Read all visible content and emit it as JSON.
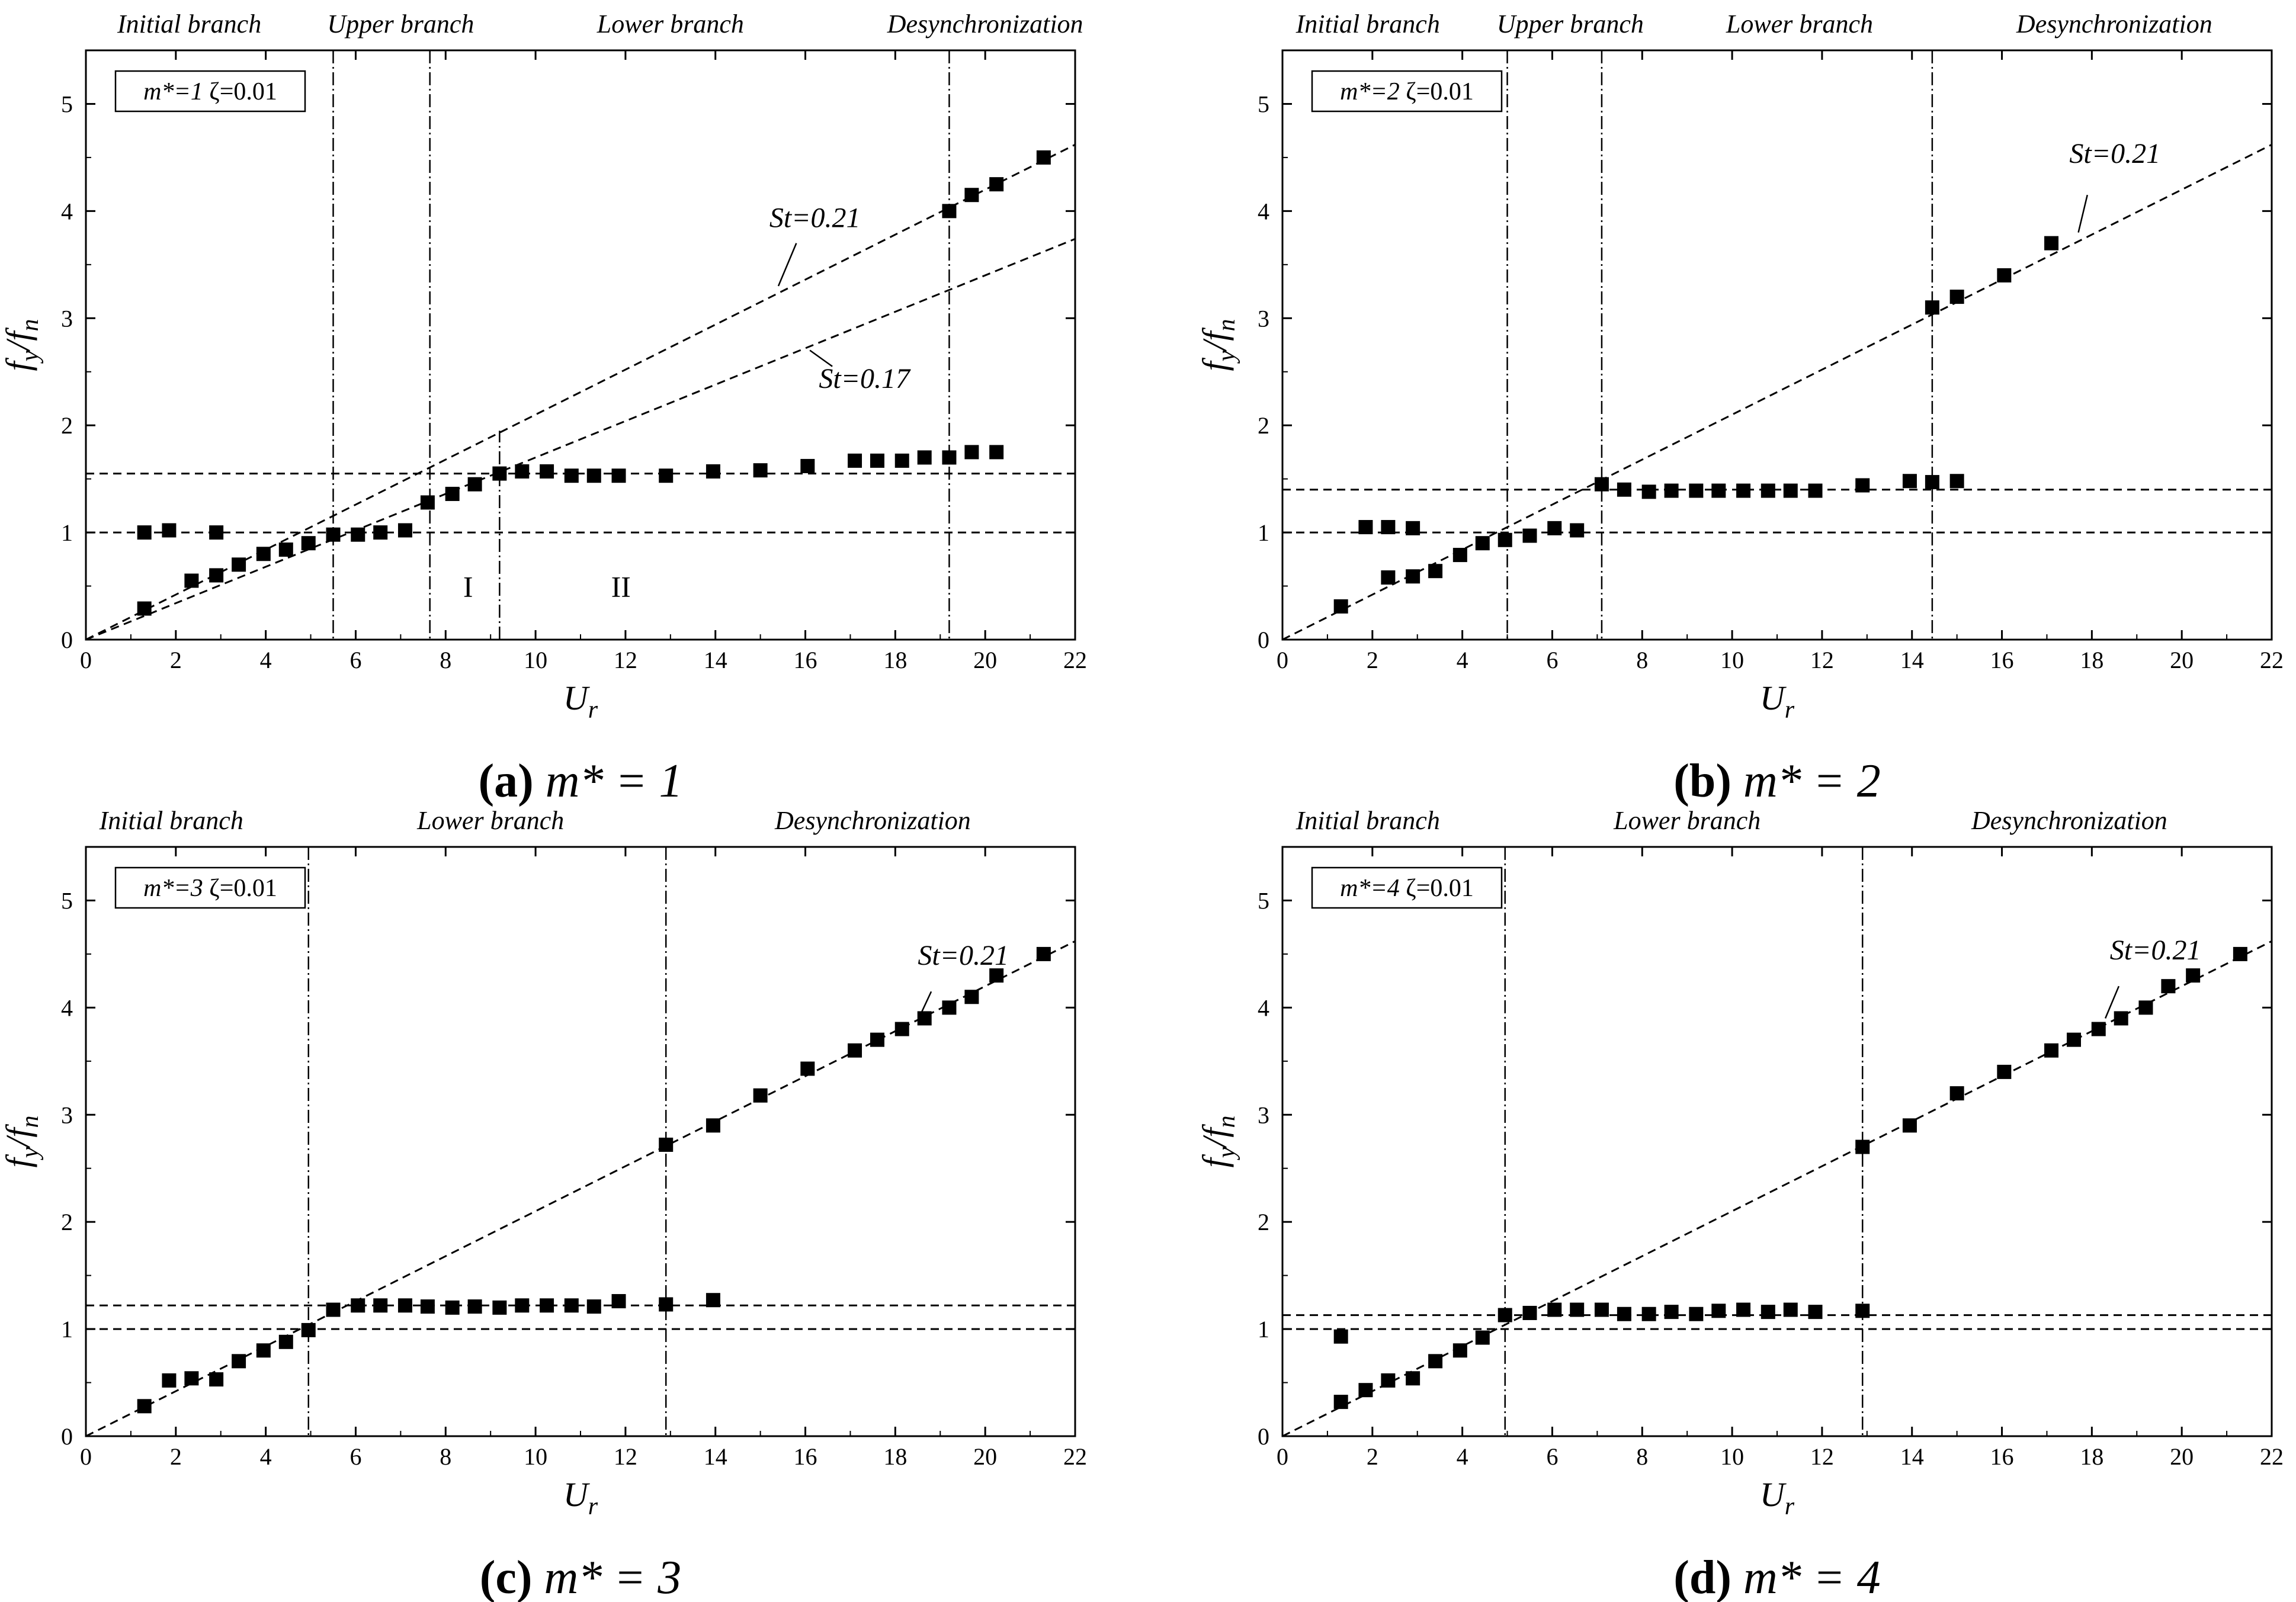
{
  "figure": {
    "x_axis_label": "U",
    "x_axis_sub": "r",
    "y_axis_label": "f",
    "y_axis_sub1": "y",
    "y_axis_sub2": "n",
    "y_axis_slash": "/"
  },
  "chart_data": [
    {
      "type": "scatter",
      "caption_letter": "(a)",
      "caption_text": "m* = 1",
      "param_label_m": "m*=1",
      "param_label_z": "ζ=0.01",
      "xlim": [
        0,
        22
      ],
      "ylim": [
        0,
        5.5
      ],
      "xticks": [
        0,
        2,
        4,
        6,
        8,
        10,
        12,
        14,
        16,
        18,
        20,
        22
      ],
      "yticks": [
        0,
        1,
        2,
        3,
        4,
        5
      ],
      "branches": [
        {
          "label": "Initial branch",
          "center": 2.3
        },
        {
          "label": "Upper branch",
          "center": 7.0
        },
        {
          "label": "Lower branch",
          "center": 13.0
        },
        {
          "label": "Desynchronization",
          "center": 20.0
        }
      ],
      "vlines": [
        5.5,
        7.65,
        19.2
      ],
      "short_vline": {
        "x": 9.2,
        "y0": 0,
        "y1": 1.95
      },
      "hlines": [
        1.0,
        1.55
      ],
      "st_lines": [
        {
          "label": "St=0.21",
          "slope": 0.21,
          "label_x": 15.2,
          "label_y": 3.85,
          "leader_from": [
            15.8,
            3.7
          ],
          "leader_to": [
            15.4,
            3.3
          ]
        },
        {
          "label": "St=0.17",
          "slope": 0.17,
          "label_x": 16.3,
          "label_y": 2.35,
          "leader_from": [
            16.6,
            2.55
          ],
          "leader_to": [
            16.1,
            2.7
          ]
        }
      ],
      "roman": [
        {
          "label": "I",
          "x": 8.5,
          "y": 0.5
        },
        {
          "label": "II",
          "x": 11.9,
          "y": 0.5
        }
      ],
      "points": [
        [
          1.3,
          1.0
        ],
        [
          1.85,
          1.02
        ],
        [
          2.9,
          1.0
        ],
        [
          1.3,
          0.29
        ],
        [
          2.35,
          0.55
        ],
        [
          2.9,
          0.6
        ],
        [
          3.4,
          0.7
        ],
        [
          3.95,
          0.8
        ],
        [
          4.45,
          0.84
        ],
        [
          4.95,
          0.9
        ],
        [
          5.5,
          0.98
        ],
        [
          6.05,
          0.98
        ],
        [
          6.55,
          1.0
        ],
        [
          7.1,
          1.02
        ],
        [
          7.6,
          1.28
        ],
        [
          8.15,
          1.36
        ],
        [
          8.65,
          1.45
        ],
        [
          9.2,
          1.55
        ],
        [
          9.7,
          1.57
        ],
        [
          10.25,
          1.57
        ],
        [
          10.8,
          1.53
        ],
        [
          11.3,
          1.53
        ],
        [
          11.85,
          1.53
        ],
        [
          12.9,
          1.53
        ],
        [
          13.95,
          1.57
        ],
        [
          15.0,
          1.58
        ],
        [
          16.05,
          1.62
        ],
        [
          17.1,
          1.67
        ],
        [
          17.6,
          1.67
        ],
        [
          18.15,
          1.67
        ],
        [
          18.65,
          1.7
        ],
        [
          19.2,
          1.7
        ],
        [
          19.7,
          1.75
        ],
        [
          20.25,
          1.75
        ],
        [
          19.2,
          4.0
        ],
        [
          19.7,
          4.15
        ],
        [
          20.25,
          4.25
        ],
        [
          21.3,
          4.5
        ]
      ]
    },
    {
      "type": "scatter",
      "caption_letter": "(b)",
      "caption_text": "m* = 2",
      "param_label_m": "m*=2",
      "param_label_z": "ζ=0.01",
      "xlim": [
        0,
        22
      ],
      "ylim": [
        0,
        5.5
      ],
      "xticks": [
        0,
        2,
        4,
        6,
        8,
        10,
        12,
        14,
        16,
        18,
        20,
        22
      ],
      "yticks": [
        0,
        1,
        2,
        3,
        4,
        5
      ],
      "branches": [
        {
          "label": "Initial branch",
          "center": 1.9
        },
        {
          "label": "Upper branch",
          "center": 6.4
        },
        {
          "label": "Lower branch",
          "center": 11.5
        },
        {
          "label": "Desynchronization",
          "center": 18.5
        }
      ],
      "vlines": [
        5.0,
        7.1,
        14.45
      ],
      "hlines": [
        1.0,
        1.4
      ],
      "st_lines": [
        {
          "label": "St=0.21",
          "slope": 0.21,
          "label_x": 17.5,
          "label_y": 4.45,
          "leader_from": [
            17.9,
            4.15
          ],
          "leader_to": [
            17.7,
            3.8
          ]
        }
      ],
      "roman": [],
      "points": [
        [
          1.3,
          0.31
        ],
        [
          1.85,
          1.05
        ],
        [
          2.35,
          1.05
        ],
        [
          2.9,
          1.04
        ],
        [
          2.35,
          0.58
        ],
        [
          2.9,
          0.59
        ],
        [
          3.4,
          0.64
        ],
        [
          3.95,
          0.79
        ],
        [
          4.45,
          0.9
        ],
        [
          4.95,
          0.93
        ],
        [
          5.5,
          0.97
        ],
        [
          6.05,
          1.04
        ],
        [
          6.55,
          1.02
        ],
        [
          7.1,
          1.45
        ],
        [
          7.6,
          1.4
        ],
        [
          8.15,
          1.38
        ],
        [
          8.65,
          1.39
        ],
        [
          9.2,
          1.39
        ],
        [
          9.7,
          1.39
        ],
        [
          10.25,
          1.39
        ],
        [
          10.8,
          1.39
        ],
        [
          11.3,
          1.39
        ],
        [
          11.85,
          1.39
        ],
        [
          12.9,
          1.44
        ],
        [
          13.95,
          1.48
        ],
        [
          14.45,
          1.47
        ],
        [
          15.0,
          1.48
        ],
        [
          14.45,
          3.1
        ],
        [
          15.0,
          3.2
        ],
        [
          16.05,
          3.4
        ],
        [
          17.1,
          3.7
        ]
      ]
    },
    {
      "type": "scatter",
      "caption_letter": "(c)",
      "caption_text": "m* = 3",
      "param_label_m": "m*=3",
      "param_label_z": "ζ=0.01",
      "xlim": [
        0,
        22
      ],
      "ylim": [
        0,
        5.5
      ],
      "xticks": [
        0,
        2,
        4,
        6,
        8,
        10,
        12,
        14,
        16,
        18,
        20,
        22
      ],
      "yticks": [
        0,
        1,
        2,
        3,
        4,
        5
      ],
      "branches": [
        {
          "label": "Initial branch",
          "center": 1.9
        },
        {
          "label": "Lower branch",
          "center": 9.0
        },
        {
          "label": "Desynchronization",
          "center": 17.5
        }
      ],
      "vlines": [
        4.95,
        12.9
      ],
      "hlines": [
        1.0,
        1.22
      ],
      "st_lines": [
        {
          "label": "St=0.21",
          "slope": 0.21,
          "label_x": 18.5,
          "label_y": 4.4,
          "leader_from": [
            18.8,
            4.15
          ],
          "leader_to": [
            18.5,
            3.88
          ]
        }
      ],
      "roman": [],
      "points": [
        [
          1.3,
          0.28
        ],
        [
          1.85,
          0.52
        ],
        [
          2.35,
          0.54
        ],
        [
          2.9,
          0.53
        ],
        [
          3.4,
          0.7
        ],
        [
          3.95,
          0.8
        ],
        [
          4.45,
          0.88
        ],
        [
          4.95,
          0.99
        ],
        [
          5.5,
          1.18
        ],
        [
          6.05,
          1.22
        ],
        [
          6.55,
          1.22
        ],
        [
          7.1,
          1.22
        ],
        [
          7.6,
          1.21
        ],
        [
          8.15,
          1.2
        ],
        [
          8.65,
          1.21
        ],
        [
          9.2,
          1.2
        ],
        [
          9.7,
          1.22
        ],
        [
          10.25,
          1.22
        ],
        [
          10.8,
          1.22
        ],
        [
          11.3,
          1.21
        ],
        [
          11.85,
          1.26
        ],
        [
          12.9,
          1.23
        ],
        [
          13.95,
          1.27
        ],
        [
          12.9,
          2.72
        ],
        [
          13.95,
          2.9
        ],
        [
          15.0,
          3.18
        ],
        [
          16.05,
          3.43
        ],
        [
          17.1,
          3.6
        ],
        [
          17.6,
          3.7
        ],
        [
          18.15,
          3.8
        ],
        [
          18.65,
          3.9
        ],
        [
          19.2,
          4.0
        ],
        [
          19.7,
          4.1
        ],
        [
          20.25,
          4.3
        ],
        [
          21.3,
          4.5
        ]
      ]
    },
    {
      "type": "scatter",
      "caption_letter": "(d)",
      "caption_text": "m* = 4",
      "param_label_m": "m*=4",
      "param_label_z": "ζ=0.01",
      "xlim": [
        0,
        22
      ],
      "ylim": [
        0,
        5.5
      ],
      "xticks": [
        0,
        2,
        4,
        6,
        8,
        10,
        12,
        14,
        16,
        18,
        20,
        22
      ],
      "yticks": [
        0,
        1,
        2,
        3,
        4,
        5
      ],
      "branches": [
        {
          "label": "Initial branch",
          "center": 1.9
        },
        {
          "label": "Lower branch",
          "center": 9.0
        },
        {
          "label": "Desynchronization",
          "center": 17.5
        }
      ],
      "vlines": [
        4.95,
        12.9
      ],
      "hlines": [
        1.0,
        1.13
      ],
      "st_lines": [
        {
          "label": "St=0.21",
          "slope": 0.21,
          "label_x": 18.4,
          "label_y": 4.45,
          "leader_from": [
            18.6,
            4.2
          ],
          "leader_to": [
            18.3,
            3.9
          ]
        }
      ],
      "roman": [],
      "points": [
        [
          1.3,
          0.93
        ],
        [
          1.3,
          0.32
        ],
        [
          1.85,
          0.43
        ],
        [
          2.35,
          0.52
        ],
        [
          2.9,
          0.54
        ],
        [
          3.4,
          0.7
        ],
        [
          3.95,
          0.8
        ],
        [
          4.45,
          0.92
        ],
        [
          4.95,
          1.13
        ],
        [
          5.5,
          1.15
        ],
        [
          6.05,
          1.18
        ],
        [
          6.55,
          1.18
        ],
        [
          7.1,
          1.18
        ],
        [
          7.6,
          1.14
        ],
        [
          8.15,
          1.14
        ],
        [
          8.65,
          1.16
        ],
        [
          9.2,
          1.14
        ],
        [
          9.7,
          1.17
        ],
        [
          10.25,
          1.18
        ],
        [
          10.8,
          1.16
        ],
        [
          11.3,
          1.18
        ],
        [
          11.85,
          1.16
        ],
        [
          12.9,
          1.17
        ],
        [
          12.9,
          2.7
        ],
        [
          13.95,
          2.9
        ],
        [
          15.0,
          3.2
        ],
        [
          16.05,
          3.4
        ],
        [
          17.1,
          3.6
        ],
        [
          17.6,
          3.7
        ],
        [
          18.15,
          3.8
        ],
        [
          18.65,
          3.9
        ],
        [
          19.2,
          4.0
        ],
        [
          19.7,
          4.2
        ],
        [
          20.25,
          4.3
        ],
        [
          21.3,
          4.5
        ]
      ]
    }
  ]
}
